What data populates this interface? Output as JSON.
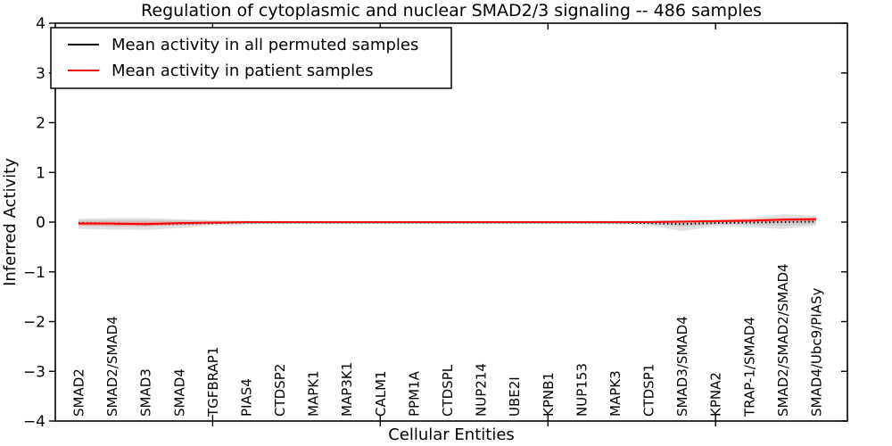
{
  "window": {
    "background": "#ffffff"
  },
  "chart_data": {
    "type": "line",
    "title": "Regulation of cytoplasmic and nuclear SMAD2/3 signaling -- 486 samples",
    "xlabel": "Cellular Entities",
    "ylabel": "Inferred Activity",
    "ylim": [
      -4,
      4
    ],
    "grid": false,
    "legend_position": "upper left",
    "ytick_values": [
      4,
      3,
      2,
      1,
      0,
      -1,
      -2,
      -3,
      -4
    ],
    "ytick_labels": [
      "4",
      "3",
      "2",
      "1",
      "0",
      "−1",
      "−2",
      "−3",
      "−4"
    ],
    "x_major_ticks": [
      5,
      10,
      15,
      20
    ],
    "categories": [
      "SMAD2",
      "SMAD2/SMAD4",
      "SMAD3",
      "SMAD4",
      "TGFBRAP1",
      "PIAS4",
      "CTDSP2",
      "MAPK1",
      "MAP3K1",
      "CALM1",
      "PPM1A",
      "CTDSPL",
      "NUP214",
      "UBE2I",
      "KPNB1",
      "NUP153",
      "MAPK3",
      "CTDSP1",
      "SMAD3/SMAD4",
      "KPNA2",
      "TRAP-1/SMAD4",
      "SMAD2/SMAD2/SMAD4",
      "SMAD4/Ubc9/PIASy"
    ],
    "series": [
      {
        "name": "Mean activity in all permuted samples",
        "color": "#000000",
        "line_style": "dotted",
        "values": [
          -0.02,
          -0.03,
          -0.04,
          -0.03,
          -0.02,
          -0.01,
          -0.01,
          -0.01,
          -0.01,
          -0.01,
          -0.01,
          -0.01,
          -0.01,
          -0.01,
          -0.01,
          -0.01,
          -0.01,
          -0.02,
          -0.04,
          -0.02,
          -0.01,
          0.0,
          0.01
        ]
      },
      {
        "name": "Mean activity in patient samples",
        "color": "#ff0000",
        "line_style": "solid",
        "values": [
          -0.03,
          -0.03,
          -0.04,
          -0.02,
          -0.01,
          0.0,
          0.0,
          0.0,
          0.0,
          0.0,
          0.0,
          0.0,
          0.0,
          0.0,
          0.0,
          0.0,
          0.0,
          0.0,
          0.01,
          0.02,
          0.03,
          0.05,
          0.06
        ]
      }
    ],
    "bands": [
      {
        "name": "permuted-sample-range",
        "color": "#aaaaaa",
        "opacity": 0.35,
        "upper": [
          0.07,
          0.08,
          0.08,
          0.06,
          0.04,
          0.03,
          0.02,
          0.02,
          0.02,
          0.02,
          0.02,
          0.02,
          0.02,
          0.02,
          0.02,
          0.02,
          0.03,
          0.03,
          0.04,
          0.05,
          0.08,
          0.16,
          0.13
        ],
        "lower": [
          -0.14,
          -0.15,
          -0.16,
          -0.12,
          -0.07,
          -0.05,
          -0.04,
          -0.04,
          -0.04,
          -0.04,
          -0.04,
          -0.04,
          -0.04,
          -0.04,
          -0.04,
          -0.04,
          -0.05,
          -0.06,
          -0.18,
          -0.08,
          -0.1,
          -0.14,
          -0.07
        ]
      },
      {
        "name": "patient-sample-range",
        "color": "#ff7777",
        "opacity": 0.35,
        "upper": [
          0.01,
          0.01,
          0.01,
          0.01,
          0.01,
          0.01,
          0.01,
          0.01,
          0.01,
          0.01,
          0.01,
          0.01,
          0.01,
          0.01,
          0.01,
          0.01,
          0.01,
          0.02,
          0.03,
          0.04,
          0.06,
          0.08,
          0.09
        ],
        "lower": [
          -0.07,
          -0.08,
          -0.08,
          -0.06,
          -0.04,
          -0.02,
          -0.02,
          -0.02,
          -0.02,
          -0.02,
          -0.02,
          -0.02,
          -0.02,
          -0.02,
          -0.02,
          -0.02,
          -0.02,
          -0.02,
          -0.02,
          -0.01,
          0.0,
          0.01,
          0.02
        ]
      }
    ]
  },
  "legend": {
    "items": [
      {
        "label": "Mean activity in all permuted samples",
        "color": "#000000"
      },
      {
        "label": "Mean activity in patient samples",
        "color": "#ff0000"
      }
    ]
  }
}
